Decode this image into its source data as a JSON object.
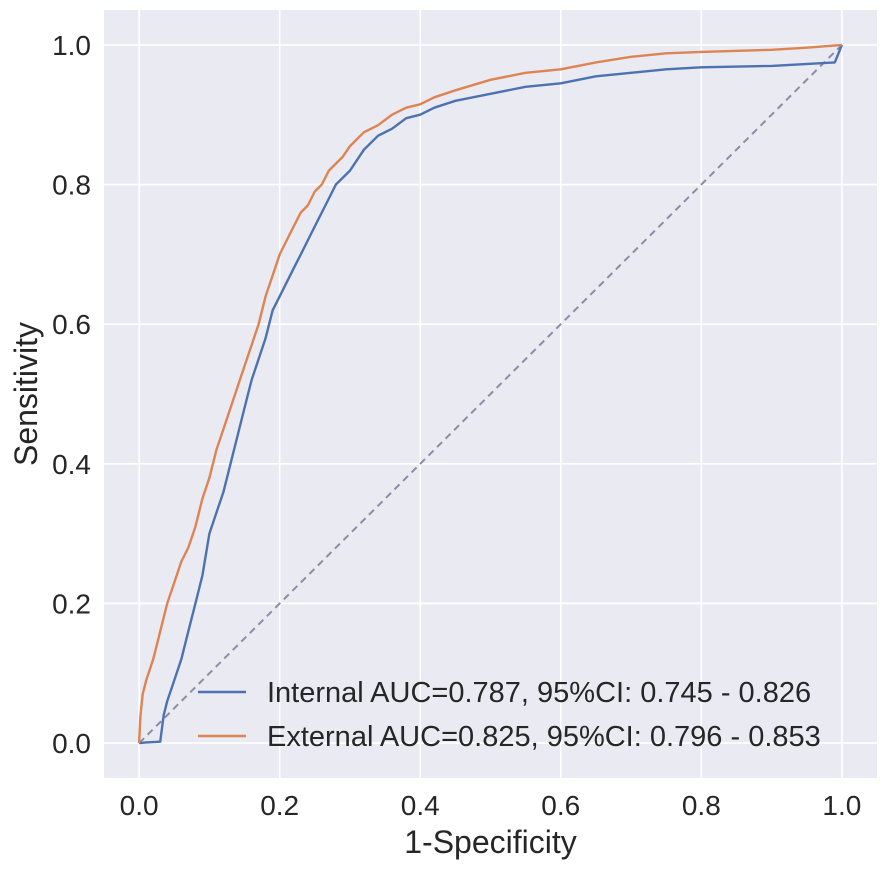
{
  "chart_data": {
    "type": "line",
    "title": "",
    "xlabel": "1-Specificity",
    "ylabel": "Sensitivity",
    "xlim": [
      -0.05,
      1.05
    ],
    "ylim": [
      -0.05,
      1.05
    ],
    "xticks": [
      "0.0",
      "0.2",
      "0.4",
      "0.6",
      "0.8",
      "1.0"
    ],
    "yticks": [
      "0.0",
      "0.2",
      "0.4",
      "0.6",
      "0.8",
      "1.0"
    ],
    "grid": true,
    "legend_position": "lower-right",
    "series": [
      {
        "name": "Internal AUC=0.787, 95%CI: 0.745 - 0.826",
        "color": "#4c72b0",
        "x": [
          0.0,
          0.01,
          0.03,
          0.035,
          0.04,
          0.05,
          0.06,
          0.07,
          0.08,
          0.09,
          0.1,
          0.11,
          0.12,
          0.13,
          0.14,
          0.15,
          0.16,
          0.17,
          0.18,
          0.19,
          0.2,
          0.21,
          0.22,
          0.23,
          0.24,
          0.25,
          0.26,
          0.27,
          0.28,
          0.29,
          0.3,
          0.32,
          0.34,
          0.36,
          0.38,
          0.4,
          0.42,
          0.45,
          0.5,
          0.55,
          0.6,
          0.65,
          0.7,
          0.75,
          0.8,
          0.9,
          0.99,
          1.0
        ],
        "y": [
          0.0,
          0.001,
          0.002,
          0.04,
          0.06,
          0.09,
          0.12,
          0.16,
          0.2,
          0.24,
          0.3,
          0.33,
          0.36,
          0.4,
          0.44,
          0.48,
          0.52,
          0.55,
          0.58,
          0.62,
          0.64,
          0.66,
          0.68,
          0.7,
          0.72,
          0.74,
          0.76,
          0.78,
          0.8,
          0.81,
          0.82,
          0.85,
          0.87,
          0.88,
          0.895,
          0.9,
          0.91,
          0.92,
          0.93,
          0.94,
          0.945,
          0.955,
          0.96,
          0.965,
          0.968,
          0.97,
          0.975,
          1.0
        ]
      },
      {
        "name": "External AUC=0.825, 95%CI: 0.796 - 0.853",
        "color": "#dd8452",
        "x": [
          0.0,
          0.002,
          0.005,
          0.01,
          0.02,
          0.03,
          0.04,
          0.05,
          0.06,
          0.07,
          0.08,
          0.09,
          0.1,
          0.11,
          0.12,
          0.13,
          0.14,
          0.15,
          0.16,
          0.17,
          0.18,
          0.19,
          0.2,
          0.21,
          0.22,
          0.23,
          0.24,
          0.25,
          0.26,
          0.27,
          0.28,
          0.29,
          0.3,
          0.32,
          0.34,
          0.36,
          0.38,
          0.4,
          0.42,
          0.45,
          0.5,
          0.55,
          0.6,
          0.65,
          0.7,
          0.75,
          0.8,
          0.9,
          0.95,
          1.0
        ],
        "y": [
          0.0,
          0.04,
          0.07,
          0.09,
          0.12,
          0.16,
          0.2,
          0.23,
          0.26,
          0.28,
          0.31,
          0.35,
          0.38,
          0.42,
          0.45,
          0.48,
          0.51,
          0.54,
          0.57,
          0.6,
          0.64,
          0.67,
          0.7,
          0.72,
          0.74,
          0.76,
          0.77,
          0.79,
          0.8,
          0.82,
          0.83,
          0.84,
          0.855,
          0.875,
          0.885,
          0.9,
          0.91,
          0.915,
          0.925,
          0.935,
          0.95,
          0.96,
          0.965,
          0.975,
          0.983,
          0.988,
          0.99,
          0.993,
          0.996,
          1.0
        ]
      }
    ],
    "reference_line": {
      "x": [
        0,
        1
      ],
      "y": [
        0,
        1
      ],
      "color": "#8c8ca6",
      "style": "dashed"
    },
    "colors": {
      "background": "#eaeaf2",
      "grid": "#ffffff"
    }
  }
}
